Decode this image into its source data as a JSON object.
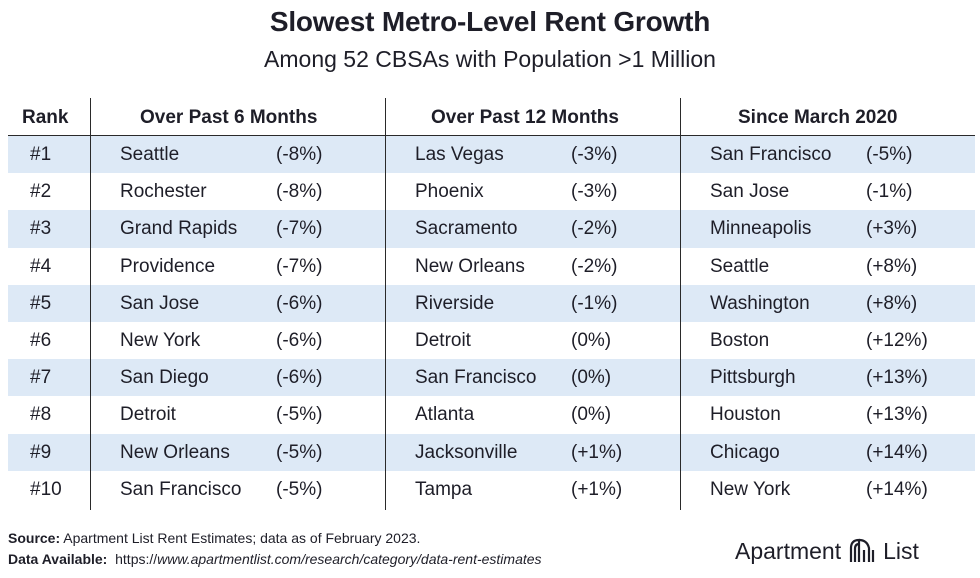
{
  "title": "Slowest Metro-Level Rent Growth",
  "subtitle": "Among 52 CBSAs with Population >1 Million",
  "chart_data": {
    "type": "table",
    "columns": [
      "Rank",
      "Over Past 6 Months",
      "Over Past 12 Months",
      "Since March 2020"
    ],
    "rows": [
      {
        "rank": "#1",
        "m6_city": "Seattle",
        "m6_val": "(-8%)",
        "m12_city": "Las Vegas",
        "m12_val": "(-3%)",
        "s20_city": "San Francisco",
        "s20_val": "(-5%)"
      },
      {
        "rank": "#2",
        "m6_city": "Rochester",
        "m6_val": "(-8%)",
        "m12_city": "Phoenix",
        "m12_val": "(-3%)",
        "s20_city": "San Jose",
        "s20_val": "(-1%)"
      },
      {
        "rank": "#3",
        "m6_city": "Grand Rapids",
        "m6_val": "(-7%)",
        "m12_city": "Sacramento",
        "m12_val": "(-2%)",
        "s20_city": "Minneapolis",
        "s20_val": "(+3%)"
      },
      {
        "rank": "#4",
        "m6_city": "Providence",
        "m6_val": "(-7%)",
        "m12_city": "New Orleans",
        "m12_val": "(-2%)",
        "s20_city": "Seattle",
        "s20_val": "(+8%)"
      },
      {
        "rank": "#5",
        "m6_city": "San Jose",
        "m6_val": "(-6%)",
        "m12_city": "Riverside",
        "m12_val": "(-1%)",
        "s20_city": "Washington",
        "s20_val": "(+8%)"
      },
      {
        "rank": "#6",
        "m6_city": "New York",
        "m6_val": "(-6%)",
        "m12_city": "Detroit",
        "m12_val": "(0%)",
        "s20_city": "Boston",
        "s20_val": "(+12%)"
      },
      {
        "rank": "#7",
        "m6_city": "San Diego",
        "m6_val": "(-6%)",
        "m12_city": "San Francisco",
        "m12_val": "(0%)",
        "s20_city": "Pittsburgh",
        "s20_val": "(+13%)"
      },
      {
        "rank": "#8",
        "m6_city": "Detroit",
        "m6_val": "(-5%)",
        "m12_city": "Atlanta",
        "m12_val": "(0%)",
        "s20_city": "Houston",
        "s20_val": "(+13%)"
      },
      {
        "rank": "#9",
        "m6_city": "New Orleans",
        "m6_val": "(-5%)",
        "m12_city": "Jacksonville",
        "m12_val": "(+1%)",
        "s20_city": "Chicago",
        "s20_val": "(+14%)"
      },
      {
        "rank": "#10",
        "m6_city": "San Francisco",
        "m6_val": "(-5%)",
        "m12_city": "Tampa",
        "m12_val": "(+1%)",
        "s20_city": "New York",
        "s20_val": "(+14%)"
      }
    ],
    "row_shade_color": "#dde9f6"
  },
  "footer": {
    "source_label": "Source:",
    "source_text": " Apartment List Rent Estimates; data as of February 2023.",
    "data_label": "Data Available:",
    "data_prefix": "  https://",
    "data_url": "www.apartmentlist.com/research/category/data-rent-estimates"
  },
  "logo": {
    "left": "Apartment",
    "right": "List",
    "icon": "apartment-list-logo-icon"
  }
}
